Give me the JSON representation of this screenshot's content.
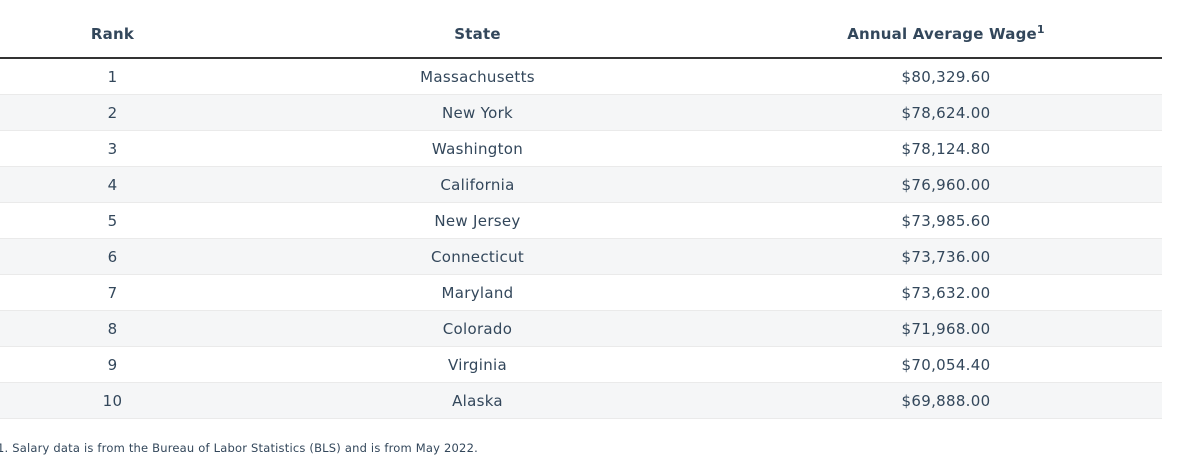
{
  "colors": {
    "text": "#33475b",
    "header_rule": "#333333",
    "row_stripe": "#f5f6f7",
    "row_border": "#eaeaea",
    "background": "#ffffff"
  },
  "table": {
    "columns": [
      {
        "label": "Rank"
      },
      {
        "label": "State"
      },
      {
        "label": "Annual Average Wage",
        "superscript": "1"
      }
    ],
    "rows": [
      {
        "rank": "1",
        "state": "Massachusetts",
        "wage": "$80,329.60"
      },
      {
        "rank": "2",
        "state": "New York",
        "wage": "$78,624.00"
      },
      {
        "rank": "3",
        "state": "Washington",
        "wage": "$78,124.80"
      },
      {
        "rank": "4",
        "state": "California",
        "wage": "$76,960.00"
      },
      {
        "rank": "5",
        "state": "New Jersey",
        "wage": "$73,985.60"
      },
      {
        "rank": "6",
        "state": "Connecticut",
        "wage": "$73,736.00"
      },
      {
        "rank": "7",
        "state": "Maryland",
        "wage": "$73,632.00"
      },
      {
        "rank": "8",
        "state": "Colorado",
        "wage": "$71,968.00"
      },
      {
        "rank": "9",
        "state": "Virginia",
        "wage": "$70,054.40"
      },
      {
        "rank": "10",
        "state": "Alaska",
        "wage": "$69,888.00"
      }
    ]
  },
  "footnote": "1. Salary data is from the Bureau of Labor Statistics (BLS) and is from May 2022.",
  "chart_data": {
    "type": "table",
    "columns": [
      "Rank",
      "State",
      "Annual Average Wage"
    ],
    "rows": [
      [
        1,
        "Massachusetts",
        80329.6
      ],
      [
        2,
        "New York",
        78624.0
      ],
      [
        3,
        "Washington",
        78124.8
      ],
      [
        4,
        "California",
        76960.0
      ],
      [
        5,
        "New Jersey",
        73985.6
      ],
      [
        6,
        "Connecticut",
        73736.0
      ],
      [
        7,
        "Maryland",
        73632.0
      ],
      [
        8,
        "Colorado",
        71968.0
      ],
      [
        9,
        "Virginia",
        70054.4
      ],
      [
        10,
        "Alaska",
        69888.0
      ]
    ],
    "footnote": "1. Salary data is from the Bureau of Labor Statistics (BLS) and is from May 2022."
  }
}
